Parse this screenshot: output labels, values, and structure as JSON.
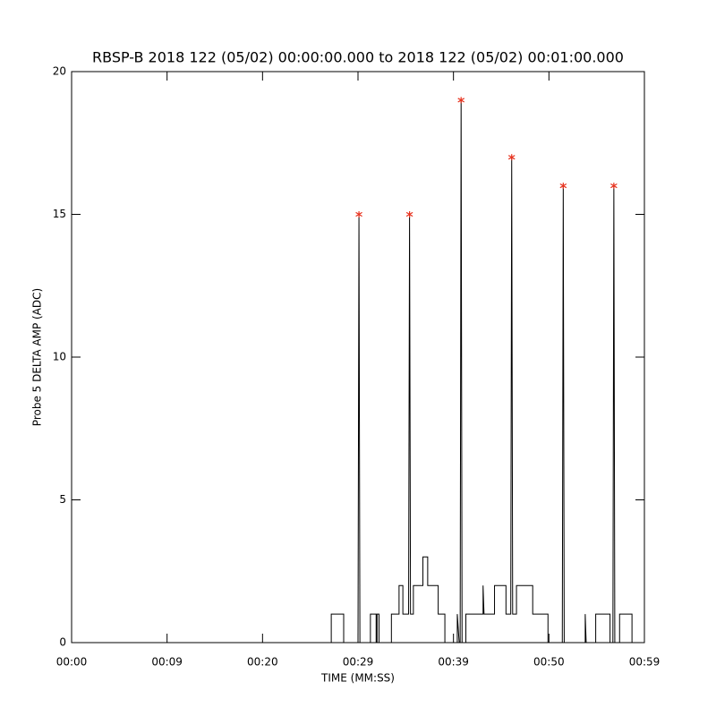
{
  "chart_data": {
    "type": "line",
    "title": "RBSP-B 2018 122 (05/02) 00:00:00.000 to 2018 122 (05/02) 00:01:00.000",
    "x_label": "TIME (MM:SS)",
    "y_label": "Probe 5 DELTA AMP (ADC)",
    "xlim": [
      0,
      60
    ],
    "ylim": [
      0,
      20
    ],
    "xticks": [
      {
        "value": 0,
        "label": "00:00"
      },
      {
        "value": 10,
        "label": "00:09"
      },
      {
        "value": 20,
        "label": "00:20"
      },
      {
        "value": 30,
        "label": "00:29"
      },
      {
        "value": 40,
        "label": "00:39"
      },
      {
        "value": 50,
        "label": "00:50"
      },
      {
        "value": 60,
        "label": "00:59"
      }
    ],
    "yticks": [
      0,
      5,
      10,
      15,
      20
    ],
    "series": [
      {
        "color": "#000000",
        "marker": "none",
        "x": [
          0,
          27.2,
          27.2,
          28.5,
          28.5,
          30.0,
          30.1,
          30.2,
          31.3,
          31.3,
          31.9,
          31.9,
          32.0,
          32.0,
          32.2,
          32.2,
          33.5,
          33.5,
          34.3,
          34.3,
          34.7,
          34.7,
          35.3,
          35.4,
          35.5,
          35.8,
          35.8,
          36.8,
          36.8,
          37.3,
          37.3,
          38.4,
          38.4,
          39.1,
          39.1,
          40.4,
          40.4,
          40.6,
          40.7,
          40.8,
          40.9,
          41.3,
          41.3,
          43.1,
          43.1,
          43.2,
          44.3,
          44.3,
          45.5,
          45.5,
          46.0,
          46.1,
          46.2,
          46.6,
          46.6,
          48.3,
          48.3,
          49.9,
          49.9,
          51.4,
          51.5,
          51.6,
          53.8,
          53.8,
          53.9,
          54.9,
          54.9,
          56.4,
          56.4,
          56.7,
          56.8,
          56.9,
          57.4,
          57.4,
          58.7,
          58.7,
          58.9
        ],
        "values": [
          0,
          0,
          1,
          1,
          0,
          0,
          15,
          0,
          0,
          1,
          1,
          0,
          0,
          1,
          1,
          0,
          0,
          1,
          1,
          2,
          2,
          1,
          1,
          15,
          1,
          1,
          2,
          2,
          3,
          3,
          2,
          2,
          1,
          1,
          0,
          0,
          1,
          0,
          0,
          19,
          0,
          0,
          1,
          1,
          2,
          1,
          1,
          2,
          2,
          1,
          1,
          17,
          1,
          1,
          2,
          2,
          1,
          1,
          0,
          0,
          16,
          0,
          0,
          1,
          0,
          0,
          1,
          1,
          0,
          0,
          16,
          0,
          0,
          1,
          1,
          0,
          0
        ]
      },
      {
        "color": "#e8321e",
        "marker": "asterisk",
        "x": [
          30.1,
          35.4,
          40.8,
          46.1,
          51.5,
          56.8
        ],
        "values": [
          15,
          15,
          19,
          17,
          16,
          16
        ]
      }
    ]
  }
}
